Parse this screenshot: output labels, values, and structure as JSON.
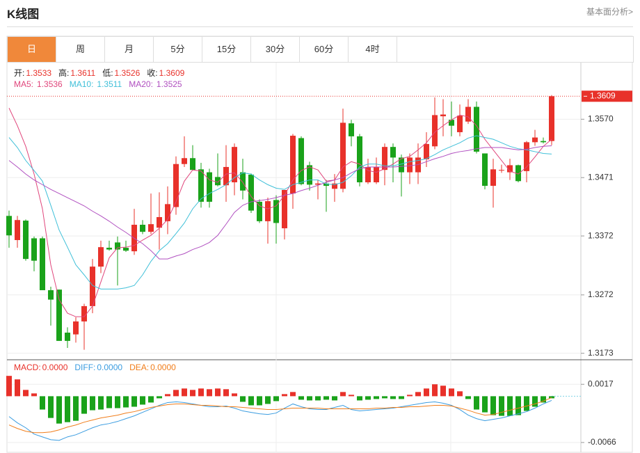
{
  "header": {
    "title": "K线图",
    "link": "基本面分析>"
  },
  "tabs": [
    "日",
    "周",
    "月",
    "5分",
    "15分",
    "30分",
    "60分",
    "4时"
  ],
  "active_tab": 0,
  "chart_data": [
    {
      "type": "candlestick",
      "info": [
        {
          "label": "开:",
          "value": 1.3533
        },
        {
          "label": "高:",
          "value": 1.3611
        },
        {
          "label": "低:",
          "value": 1.3526
        },
        {
          "label": "收:",
          "value": 1.3609
        }
      ],
      "up_color": "#e8312a",
      "down_color": "#1aa21a",
      "open": [
        1.3406,
        1.3365,
        1.3398,
        1.3368,
        1.3368,
        1.328,
        1.3281,
        1.3208,
        1.3205,
        1.3227,
        1.3253,
        1.332,
        1.3352,
        1.3361,
        1.3352,
        1.3346,
        1.3391,
        1.3379,
        1.3386,
        1.3397,
        1.3421,
        1.3494,
        1.3504,
        1.3485,
        1.348,
        1.3472,
        1.3458,
        1.3463,
        1.348,
        1.3476,
        1.343,
        1.3397,
        1.3433,
        1.3385,
        1.3444,
        1.3538,
        1.3492,
        1.3459,
        1.3461,
        1.3452,
        1.3452,
        1.3563,
        1.3541,
        1.3463,
        1.3463,
        1.3484,
        1.3523,
        1.3505,
        1.348,
        1.348,
        1.3502,
        1.3524,
        1.3575,
        1.3569,
        1.3548,
        1.3566,
        1.3591,
        1.3512,
        1.3457,
        1.3483,
        1.348,
        1.3492,
        1.3482,
        1.3531,
        1.3533,
        1.3533
      ],
      "high": [
        1.3415,
        1.3406,
        1.34,
        1.3371,
        1.3371,
        1.3286,
        1.3281,
        1.3217,
        1.3234,
        1.3257,
        1.3333,
        1.3364,
        1.3364,
        1.3371,
        1.3364,
        1.3418,
        1.3399,
        1.3444,
        1.3446,
        1.3456,
        1.3507,
        1.3541,
        1.3526,
        1.3496,
        1.3486,
        1.3512,
        1.3526,
        1.3529,
        1.3503,
        1.3478,
        1.3434,
        1.3437,
        1.3441,
        1.345,
        1.3545,
        1.3541,
        1.3498,
        1.3467,
        1.3467,
        1.3477,
        1.3588,
        1.3569,
        1.3545,
        1.3503,
        1.3505,
        1.3529,
        1.3529,
        1.351,
        1.3512,
        1.3529,
        1.3548,
        1.3607,
        1.3604,
        1.36,
        1.3595,
        1.3604,
        1.36,
        1.3512,
        1.3503,
        1.3493,
        1.3503,
        1.3493,
        1.3533,
        1.3552,
        1.3539,
        1.3611
      ],
      "low": [
        1.3352,
        1.3352,
        1.333,
        1.3312,
        1.328,
        1.322,
        1.3194,
        1.3182,
        1.3191,
        1.3179,
        1.3241,
        1.3309,
        1.3347,
        1.3288,
        1.3345,
        1.334,
        1.3375,
        1.3375,
        1.3349,
        1.3375,
        1.3408,
        1.3489,
        1.3483,
        1.342,
        1.342,
        1.3456,
        1.343,
        1.3441,
        1.3434,
        1.3411,
        1.3394,
        1.3359,
        1.3359,
        1.3366,
        1.3418,
        1.3458,
        1.3449,
        1.3434,
        1.3413,
        1.343,
        1.3446,
        1.3524,
        1.3456,
        1.346,
        1.346,
        1.3458,
        1.3463,
        1.3439,
        1.346,
        1.346,
        1.3489,
        1.3519,
        1.3541,
        1.3541,
        1.3541,
        1.3562,
        1.3512,
        1.3451,
        1.342,
        1.3479,
        1.3467,
        1.3463,
        1.3463,
        1.3525,
        1.3529,
        1.3526
      ],
      "close": [
        1.3373,
        1.3399,
        1.3333,
        1.333,
        1.328,
        1.3264,
        1.3194,
        1.3194,
        1.3227,
        1.3253,
        1.332,
        1.3353,
        1.3349,
        1.3349,
        1.3347,
        1.3391,
        1.3379,
        1.3392,
        1.3404,
        1.3426,
        1.3494,
        1.3504,
        1.3484,
        1.343,
        1.343,
        1.3458,
        1.3489,
        1.3523,
        1.3449,
        1.3415,
        1.3397,
        1.3431,
        1.3394,
        1.345,
        1.3542,
        1.346,
        1.3459,
        1.3461,
        1.3457,
        1.3461,
        1.3564,
        1.3541,
        1.3463,
        1.3489,
        1.3489,
        1.3523,
        1.3505,
        1.348,
        1.3505,
        1.3505,
        1.3528,
        1.3577,
        1.3578,
        1.3559,
        1.3576,
        1.3591,
        1.3515,
        1.3457,
        1.3485,
        1.3484,
        1.3492,
        1.3465,
        1.3531,
        1.3539,
        1.3531,
        1.3609
      ],
      "series": [
        {
          "name": "MA5:",
          "color": "#e0457b",
          "values": [
            1.3589,
            1.3559,
            1.3524,
            1.3477,
            1.3418,
            1.3323,
            1.3264,
            1.3241,
            1.3235,
            1.3235,
            1.3253,
            1.3294,
            1.3335,
            1.3352,
            1.3353,
            1.3356,
            1.3365,
            1.3373,
            1.3385,
            1.34,
            1.343,
            1.3465,
            1.3484,
            1.3482,
            1.3467,
            1.3463,
            1.3477,
            1.3479,
            1.3463,
            1.3439,
            1.3423,
            1.3418,
            1.3423,
            1.3441,
            1.3467,
            1.3483,
            1.3489,
            1.3484,
            1.3465,
            1.3467,
            1.3489,
            1.3498,
            1.3494,
            1.3483,
            1.348,
            1.3486,
            1.3494,
            1.3503,
            1.3507,
            1.3518,
            1.353,
            1.3548,
            1.3559,
            1.3569,
            1.3577,
            1.3574,
            1.3559,
            1.3536,
            1.3518,
            1.35,
            1.3482,
            1.3477,
            1.3489,
            1.3506,
            1.3524,
            1.3536
          ]
        },
        {
          "name": "MA10:",
          "color": "#3ebfd8",
          "values": [
            1.3539,
            1.3522,
            1.35,
            1.3483,
            1.3465,
            1.3424,
            1.3382,
            1.3353,
            1.3323,
            1.3306,
            1.3288,
            1.3282,
            1.3282,
            1.3282,
            1.3284,
            1.3288,
            1.3306,
            1.3329,
            1.3347,
            1.3359,
            1.3376,
            1.3394,
            1.3418,
            1.3435,
            1.3444,
            1.3451,
            1.3459,
            1.3471,
            1.3479,
            1.3477,
            1.3467,
            1.3459,
            1.3453,
            1.3451,
            1.3459,
            1.3463,
            1.3467,
            1.3467,
            1.346,
            1.3459,
            1.3463,
            1.3474,
            1.3489,
            1.3494,
            1.3494,
            1.3491,
            1.3491,
            1.3494,
            1.3498,
            1.35,
            1.3503,
            1.351,
            1.3518,
            1.3524,
            1.353,
            1.3538,
            1.3542,
            1.3539,
            1.3536,
            1.353,
            1.3524,
            1.352,
            1.3518,
            1.3515,
            1.3512,
            1.3511
          ]
        },
        {
          "name": "MA20:",
          "color": "#b04fc0",
          "values": [
            1.35,
            1.3489,
            1.3477,
            1.3467,
            1.3459,
            1.3451,
            1.3444,
            1.3437,
            1.343,
            1.3423,
            1.3414,
            1.3406,
            1.3397,
            1.3387,
            1.3378,
            1.3368,
            1.3359,
            1.3347,
            1.3333,
            1.3333,
            1.3338,
            1.3342,
            1.3349,
            1.3354,
            1.3361,
            1.3373,
            1.3392,
            1.3412,
            1.3424,
            1.343,
            1.3432,
            1.3434,
            1.3437,
            1.3441,
            1.3444,
            1.3449,
            1.3453,
            1.3458,
            1.3463,
            1.3467,
            1.3471,
            1.3479,
            1.3486,
            1.3489,
            1.3489,
            1.3489,
            1.3489,
            1.349,
            1.3491,
            1.3493,
            1.3498,
            1.3503,
            1.3507,
            1.3512,
            1.3515,
            1.3517,
            1.352,
            1.3522,
            1.3522,
            1.3522,
            1.352,
            1.3518,
            1.3519,
            1.3522,
            1.3524,
            1.3525
          ]
        }
      ],
      "ylim": [
        1.3162,
        1.3666
      ],
      "yticks": [
        {
          "value": 1.357,
          "label": "1.3570"
        },
        1.3471,
        1.3372,
        1.3272,
        1.3173
      ]
    },
    {
      "type": "macd",
      "readouts": [
        {
          "name": "MACD:",
          "value": 0,
          "value_label": "0.0000",
          "color": "#e8312a"
        },
        {
          "name": "DIFF:",
          "value": 0,
          "value_label": "0.0000",
          "color": "#3a9ce0"
        },
        {
          "name": "DEA:",
          "value": 0,
          "value_label": "0.0000",
          "color": "#f07d1a"
        }
      ],
      "up_color": "#e8312a",
      "down_color": "#1aa21a",
      "values": [
        0.0029,
        0.0024,
        0.0009,
        0.0004,
        -0.0019,
        -0.0031,
        -0.0039,
        -0.0037,
        -0.0035,
        -0.0025,
        -0.002,
        -0.0019,
        -0.0017,
        -0.0017,
        -0.0016,
        -0.0015,
        -0.0012,
        -0.0009,
        -0.0003,
        0.0003,
        0.0009,
        0.0011,
        0.0009,
        0.0011,
        0.001,
        0.0011,
        0.001,
        0.0004,
        -0.0008,
        -0.0013,
        -0.0013,
        -0.0011,
        -0.0007,
        0.0003,
        0.0006,
        -0.0005,
        -0.0006,
        -0.0006,
        -0.0005,
        -0.0006,
        0.0006,
        0.0002,
        -0.0006,
        -0.0005,
        -0.0004,
        -0.0003,
        -0.0004,
        -0.0004,
        0.0002,
        0.0006,
        0.0011,
        0.0017,
        0.0015,
        0.0011,
        0.0007,
        -0.0004,
        -0.0019,
        -0.0023,
        -0.0027,
        -0.0028,
        -0.0028,
        -0.0027,
        -0.0021,
        -0.0015,
        -0.0009,
        -0.0003
      ],
      "series": [
        {
          "color": "#3a9ce0",
          "values": [
            -0.0029,
            -0.0038,
            -0.0045,
            -0.0054,
            -0.0058,
            -0.0062,
            -0.0063,
            -0.0058,
            -0.0055,
            -0.005,
            -0.0045,
            -0.0041,
            -0.0039,
            -0.0036,
            -0.0032,
            -0.0028,
            -0.0023,
            -0.0018,
            -0.0013,
            -0.0009,
            -0.0008,
            -0.0009,
            -0.0011,
            -0.0013,
            -0.0015,
            -0.0015,
            -0.0014,
            -0.0017,
            -0.0021,
            -0.0023,
            -0.0025,
            -0.0026,
            -0.0024,
            -0.0017,
            -0.0011,
            -0.0015,
            -0.0018,
            -0.0019,
            -0.0019,
            -0.0016,
            -0.0013,
            -0.0019,
            -0.0021,
            -0.002,
            -0.0019,
            -0.0018,
            -0.0017,
            -0.0015,
            -0.0013,
            -0.0011,
            -0.0009,
            -0.0008,
            -0.001,
            -0.0013,
            -0.0019,
            -0.0027,
            -0.0032,
            -0.0035,
            -0.0033,
            -0.0031,
            -0.0028,
            -0.0025,
            -0.0022,
            -0.0017,
            -0.0011,
            -0.0006
          ]
        },
        {
          "color": "#f07d1a",
          "values": [
            -0.0041,
            -0.0046,
            -0.005,
            -0.0052,
            -0.0052,
            -0.0051,
            -0.0048,
            -0.0044,
            -0.0041,
            -0.0037,
            -0.0034,
            -0.0031,
            -0.0029,
            -0.0027,
            -0.0024,
            -0.0022,
            -0.0019,
            -0.0016,
            -0.0014,
            -0.0012,
            -0.0011,
            -0.0011,
            -0.0012,
            -0.0013,
            -0.0013,
            -0.0014,
            -0.0015,
            -0.0015,
            -0.0016,
            -0.0017,
            -0.0018,
            -0.0019,
            -0.0019,
            -0.0018,
            -0.0017,
            -0.0017,
            -0.0017,
            -0.0017,
            -0.0018,
            -0.0018,
            -0.0018,
            -0.0018,
            -0.0018,
            -0.0018,
            -0.0017,
            -0.0017,
            -0.0016,
            -0.0016,
            -0.0015,
            -0.0015,
            -0.0014,
            -0.0013,
            -0.0013,
            -0.0014,
            -0.0017,
            -0.002,
            -0.0024,
            -0.0027,
            -0.0026,
            -0.0023,
            -0.002,
            -0.0017,
            -0.0014,
            -0.0011,
            -0.0007,
            -0.0002
          ]
        }
      ],
      "ylim": [
        -0.0078,
        0.005
      ],
      "yticks": [
        0.0017,
        -0.0066
      ]
    }
  ]
}
